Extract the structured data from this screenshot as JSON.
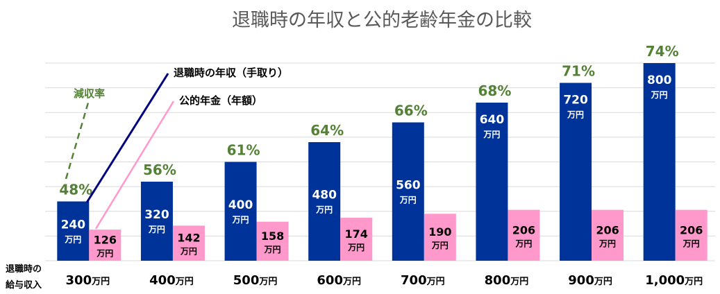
{
  "chart_data": {
    "type": "bar",
    "title": "退職時の年収と公的老齢年金の比較",
    "x_axis_title": [
      "退職時の",
      "給与収入"
    ],
    "categories": [
      "300",
      "400",
      "500",
      "600",
      "700",
      "800",
      "900",
      "1,000"
    ],
    "category_unit": "万円",
    "value_unit": "万円",
    "series": [
      {
        "name": "退職時の年収（手取り）",
        "values": [
          240,
          320,
          400,
          480,
          560,
          640,
          720,
          800
        ],
        "color": "#003399"
      },
      {
        "name": "公的年金（年額）",
        "values": [
          126,
          142,
          158,
          174,
          190,
          206,
          206,
          206
        ],
        "color": "#ff99cc"
      }
    ],
    "ratio_name": "減収率",
    "ratio_labels": [
      "48%",
      "56%",
      "61%",
      "64%",
      "66%",
      "68%",
      "71%",
      "74%"
    ],
    "ylim": [
      0,
      800
    ],
    "grid": true,
    "colors": {
      "ratio": "#538135",
      "title": "#595959",
      "grid": "#d9d9d9"
    }
  }
}
